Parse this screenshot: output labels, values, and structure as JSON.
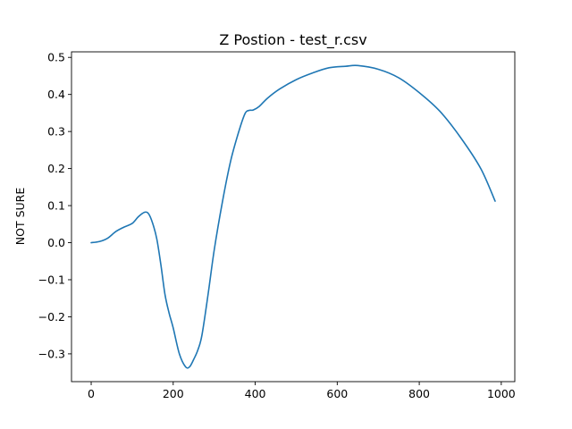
{
  "chart_data": {
    "type": "line",
    "title": "Z Postion - test_r.csv",
    "xlabel": "",
    "ylabel": "NOT SURE",
    "xlim": [
      -48,
      1033
    ],
    "ylim": [
      -0.375,
      0.515
    ],
    "xticks": [
      0,
      200,
      400,
      600,
      800,
      1000
    ],
    "xtick_labels": [
      "0",
      "200",
      "400",
      "600",
      "800",
      "1000"
    ],
    "yticks": [
      -0.3,
      -0.2,
      -0.1,
      0.0,
      0.1,
      0.2,
      0.3,
      0.4,
      0.5
    ],
    "ytick_labels": [
      "−0.3",
      "−0.2",
      "−0.1",
      "0.0",
      "0.1",
      "0.2",
      "0.3",
      "0.4",
      "0.5"
    ],
    "grid": false,
    "colors": {
      "line": "#1f77b4",
      "axes": "#000000",
      "background": "#ffffff"
    },
    "series": [
      {
        "x": [
          0,
          20,
          40,
          60,
          80,
          100,
          115,
          130,
          140,
          150,
          160,
          170,
          180,
          190,
          200,
          215,
          230,
          240,
          250,
          260,
          270,
          285,
          300,
          320,
          340,
          360,
          375,
          385,
          395,
          410,
          430,
          460,
          500,
          540,
          580,
          620,
          650,
          700,
          750,
          800,
          850,
          900,
          950,
          985
        ],
        "y": [
          0.0,
          0.003,
          0.012,
          0.03,
          0.042,
          0.052,
          0.07,
          0.082,
          0.078,
          0.052,
          0.01,
          -0.06,
          -0.14,
          -0.19,
          -0.23,
          -0.3,
          -0.335,
          -0.335,
          -0.315,
          -0.29,
          -0.25,
          -0.14,
          -0.02,
          0.11,
          0.22,
          0.3,
          0.348,
          0.357,
          0.358,
          0.368,
          0.39,
          0.415,
          0.44,
          0.458,
          0.472,
          0.476,
          0.478,
          0.468,
          0.445,
          0.405,
          0.355,
          0.285,
          0.2,
          0.112
        ]
      }
    ]
  }
}
